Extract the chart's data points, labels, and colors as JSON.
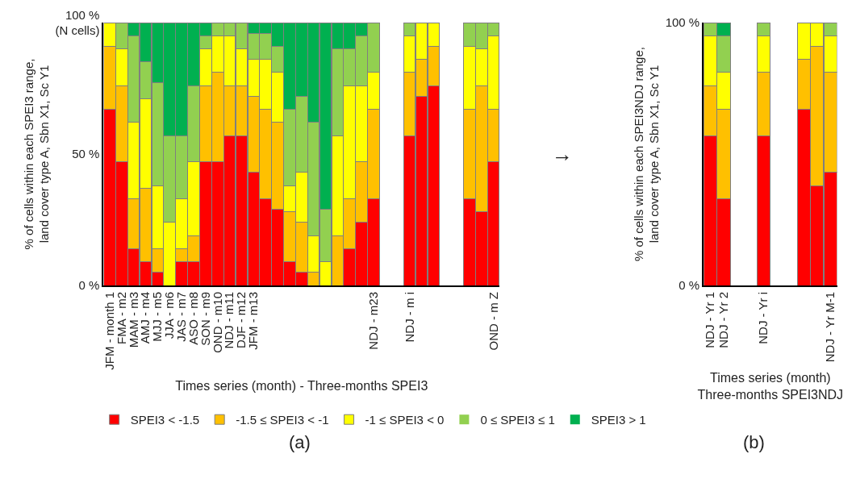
{
  "chart_data": [
    {
      "type": "bar",
      "stacked": true,
      "ylabel": "% of cells within each SPEI3 range,\nland cover type A, Sbn X1, Sc Y1",
      "xlabel": "Times series (month) - Three-months SPEI3",
      "categories": [
        "JFM - month 1",
        "FMA - m2",
        "MAM - m3",
        "AMJ - m4",
        "MJJ - m5",
        "JJA - m6",
        "JAS - m7",
        "ASO - m8",
        "SON - m9",
        "OND - m10",
        "NDJ - m11",
        "DJF - m12",
        "JFM - m13",
        null,
        null,
        null,
        null,
        null,
        null,
        null,
        null,
        null,
        "NDJ - m23",
        null,
        null,
        "NDJ - m i",
        null,
        null,
        null,
        null,
        null,
        null,
        "OND - m Z"
      ],
      "series": [
        {
          "name": "SPEI3 < -1.5",
          "color": "#ff0000",
          "values": [
            67,
            47,
            14,
            9,
            5,
            0,
            9,
            9,
            47,
            47,
            57,
            57,
            43,
            33,
            29,
            9,
            5,
            0,
            0,
            0,
            14,
            24,
            33,
            null,
            null,
            57,
            72,
            76,
            null,
            null,
            33,
            28,
            47
          ]
        },
        {
          "name": "-1.5 ≤ SPEI3 < -1",
          "color": "#ffc000",
          "values": [
            24,
            29,
            19,
            28,
            9,
            0,
            5,
            10,
            29,
            34,
            19,
            19,
            29,
            34,
            33,
            19,
            19,
            5,
            0,
            19,
            19,
            23,
            34,
            null,
            null,
            24,
            14,
            15,
            null,
            null,
            34,
            48,
            20
          ]
        },
        {
          "name": "-1 ≤ SPEI3 < 0",
          "color": "#ffff00",
          "values": [
            9,
            14,
            29,
            34,
            24,
            24,
            19,
            28,
            14,
            14,
            19,
            14,
            14,
            19,
            19,
            10,
            19,
            14,
            9,
            38,
            43,
            29,
            14,
            null,
            null,
            14,
            14,
            9,
            null,
            null,
            24,
            14,
            28
          ]
        },
        {
          "name": "0 ≤ SPEI3 ≤ 1",
          "color": "#92d050",
          "values": [
            0,
            10,
            33,
            14,
            39,
            33,
            24,
            29,
            5,
            5,
            5,
            10,
            10,
            10,
            10,
            29,
            29,
            43,
            20,
            33,
            14,
            19,
            19,
            null,
            null,
            5,
            0,
            0,
            null,
            null,
            9,
            10,
            5
          ]
        },
        {
          "name": "SPEI3 > 1",
          "color": "#00b050",
          "values": [
            0,
            0,
            5,
            15,
            23,
            43,
            43,
            24,
            5,
            0,
            0,
            0,
            4,
            4,
            9,
            33,
            28,
            38,
            71,
            10,
            10,
            5,
            0,
            null,
            null,
            0,
            0,
            0,
            null,
            null,
            0,
            0,
            0
          ]
        }
      ],
      "ylim": [
        0,
        100
      ],
      "yticks": [
        {
          "value": 0,
          "label": "0 %"
        },
        {
          "value": 50,
          "label": "50 %"
        },
        {
          "value": 100,
          "label": "100 %\n(N cells)"
        }
      ],
      "legend": "bottom",
      "annotations": [
        "(a)",
        "→"
      ]
    },
    {
      "type": "bar",
      "stacked": true,
      "ylabel": "% of cells within each SPEI3NDJ range,\nland cover type A, Sbn X1, Sc Y1",
      "xlabel": "Times series (month)\nThree-months SPEI3NDJ",
      "categories": [
        "NDJ - Yr 1",
        "NDJ - Yr 2",
        null,
        null,
        "NDJ - Yr i",
        null,
        null,
        null,
        null,
        "NDJ - Yr M-1"
      ],
      "series": [
        {
          "color": "#ff0000",
          "values": [
            57,
            33,
            null,
            null,
            57,
            null,
            null,
            67,
            38,
            43
          ]
        },
        {
          "color": "#ffc000",
          "values": [
            19,
            34,
            null,
            null,
            24,
            null,
            null,
            19,
            53,
            38
          ]
        },
        {
          "color": "#ffff00",
          "values": [
            19,
            14,
            null,
            null,
            14,
            null,
            null,
            14,
            9,
            14
          ]
        },
        {
          "color": "#92d050",
          "values": [
            5,
            14,
            null,
            null,
            5,
            null,
            null,
            0,
            0,
            5
          ]
        },
        {
          "color": "#00b050",
          "values": [
            0,
            5,
            null,
            null,
            0,
            null,
            null,
            0,
            0,
            0
          ]
        }
      ],
      "ylim": [
        0,
        100
      ],
      "yticks": [
        {
          "value": 0,
          "label": "0 %"
        },
        {
          "value": 100,
          "label": "100 %"
        }
      ],
      "legend": false,
      "annotations": [
        "(b)"
      ]
    }
  ]
}
